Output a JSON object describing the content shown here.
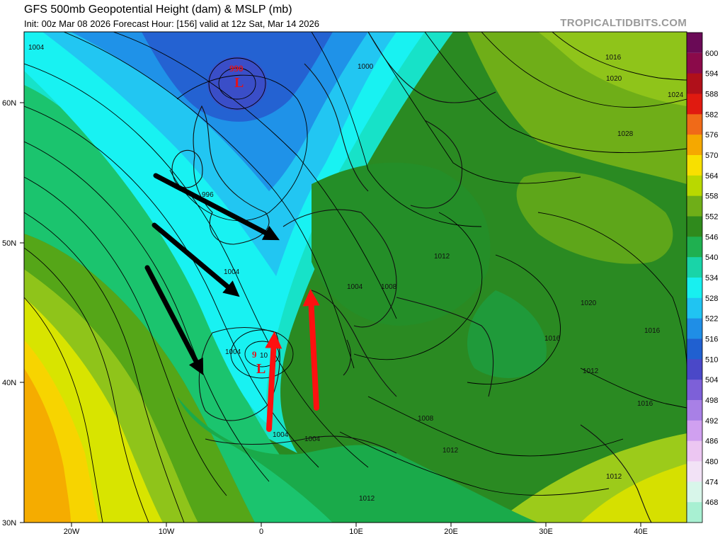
{
  "header": {
    "title": "GFS 500mb Geopotential Height (dam) & MSLP (mb)",
    "subtitle": "Init: 00z Mar 08 2026   Forecast Hour: [156]   valid at 12z Sat, Mar 14 2026",
    "brand": "TROPICALTIDBITS.COM"
  },
  "axes": {
    "lat_labels": [
      "60N",
      "50N",
      "40N",
      "30N"
    ],
    "lon_labels": [
      "20W",
      "10W",
      "0",
      "10E",
      "20E",
      "30E",
      "40E"
    ]
  },
  "colorbar": {
    "units": "dam",
    "levels": [
      "600",
      "594",
      "588",
      "582",
      "576",
      "570",
      "564",
      "558",
      "552",
      "546",
      "540",
      "534",
      "528",
      "522",
      "516",
      "510",
      "504",
      "498",
      "492",
      "486",
      "480",
      "474",
      "468"
    ],
    "colors": [
      "#8b0a4a",
      "#b0101a",
      "#e01a10",
      "#f06a18",
      "#f5a800",
      "#f8e000",
      "#b9d800",
      "#6fae18",
      "#2f8a1c",
      "#1fb050",
      "#19d4a8",
      "#18f0f0",
      "#20c4f2",
      "#1f8ee6",
      "#2060d0",
      "#4a48c8",
      "#7d60d8",
      "#a880e6",
      "#d0a0f0",
      "#ecc6f2",
      "#f2e2f6",
      "#d8f6ea",
      "#a8f0d2"
    ]
  },
  "pressure_labels": {
    "low_center_north": "990",
    "low_symbol": "L",
    "low_center_iberia": "9",
    "iberia_partial": "10",
    "isobars": [
      "1004",
      "1000",
      "996",
      "1004",
      "1004",
      "1004",
      "1004",
      "1004",
      "1008",
      "1012",
      "1008",
      "1012",
      "1012",
      "1012",
      "1016",
      "1016",
      "1016",
      "1020",
      "1020",
      "1024",
      "1028",
      "1016",
      "1012",
      "1008",
      "1012"
    ]
  },
  "annotations": {
    "black_arrows": 3,
    "red_arrows": 2
  }
}
